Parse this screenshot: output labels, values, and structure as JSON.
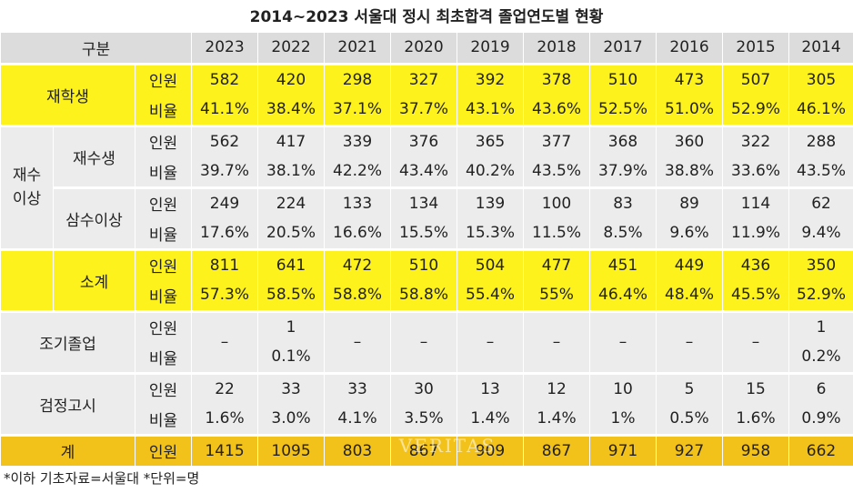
{
  "chart_data": {
    "type": "table",
    "title": "2014~2023 서울대 정시 최초합격 졸업연도별 현황",
    "header_label": "구분",
    "years": [
      "2023",
      "2022",
      "2021",
      "2020",
      "2019",
      "2018",
      "2017",
      "2016",
      "2015",
      "2014"
    ],
    "labels": {
      "count": "인원",
      "ratio": "비율"
    },
    "rows": {
      "jaehak": {
        "name": "재학생",
        "count": [
          "582",
          "420",
          "298",
          "327",
          "392",
          "378",
          "510",
          "473",
          "507",
          "305"
        ],
        "ratio": [
          "41.1%",
          "38.4%",
          "37.1%",
          "37.7%",
          "43.1%",
          "43.6%",
          "52.5%",
          "51.0%",
          "52.9%",
          "46.1%"
        ]
      },
      "group_name": "재수\n이상",
      "jaesu": {
        "name": "재수생",
        "count": [
          "562",
          "417",
          "339",
          "376",
          "365",
          "377",
          "368",
          "360",
          "322",
          "288"
        ],
        "ratio": [
          "39.7%",
          "38.1%",
          "42.2%",
          "43.4%",
          "40.2%",
          "43.5%",
          "37.9%",
          "38.8%",
          "33.6%",
          "43.5%"
        ]
      },
      "samsu": {
        "name": "삼수이상",
        "count": [
          "249",
          "224",
          "133",
          "134",
          "139",
          "100",
          "83",
          "89",
          "114",
          "62"
        ],
        "ratio": [
          "17.6%",
          "20.5%",
          "16.6%",
          "15.5%",
          "15.3%",
          "11.5%",
          "8.5%",
          "9.6%",
          "11.9%",
          "9.4%"
        ]
      },
      "subtotal": {
        "name": "소계",
        "count": [
          "811",
          "641",
          "472",
          "510",
          "504",
          "477",
          "451",
          "449",
          "436",
          "350"
        ],
        "ratio": [
          "57.3%",
          "58.5%",
          "58.8%",
          "58.8%",
          "55.4%",
          "55%",
          "46.4%",
          "48.4%",
          "45.5%",
          "52.9%"
        ]
      },
      "early": {
        "name": "조기졸업",
        "count": [
          "–",
          "1",
          "–",
          "–",
          "–",
          "–",
          "–",
          "–",
          "–",
          "1"
        ],
        "ratio": [
          "",
          "0.1%",
          "",
          "",
          "",
          "",
          "",
          "",
          "",
          "0.2%"
        ]
      },
      "ged": {
        "name": "검정고시",
        "count": [
          "22",
          "33",
          "33",
          "30",
          "13",
          "12",
          "10",
          "5",
          "15",
          "6"
        ],
        "ratio": [
          "1.6%",
          "3.0%",
          "4.1%",
          "3.5%",
          "1.4%",
          "1.4%",
          "1%",
          "0.5%",
          "1.6%",
          "0.9%"
        ]
      },
      "total": {
        "name": "계",
        "count": [
          "1415",
          "1095",
          "803",
          "867",
          "909",
          "867",
          "971",
          "927",
          "958",
          "662"
        ]
      }
    },
    "footnote": "*이하 기초자료=서울대 *단위=명",
    "watermark": "VERITAS",
    "colors": {
      "yellow": "#fdf21c",
      "gray": "#ececec",
      "header": "#dcdcdc",
      "gold": "#f2c21a"
    }
  }
}
